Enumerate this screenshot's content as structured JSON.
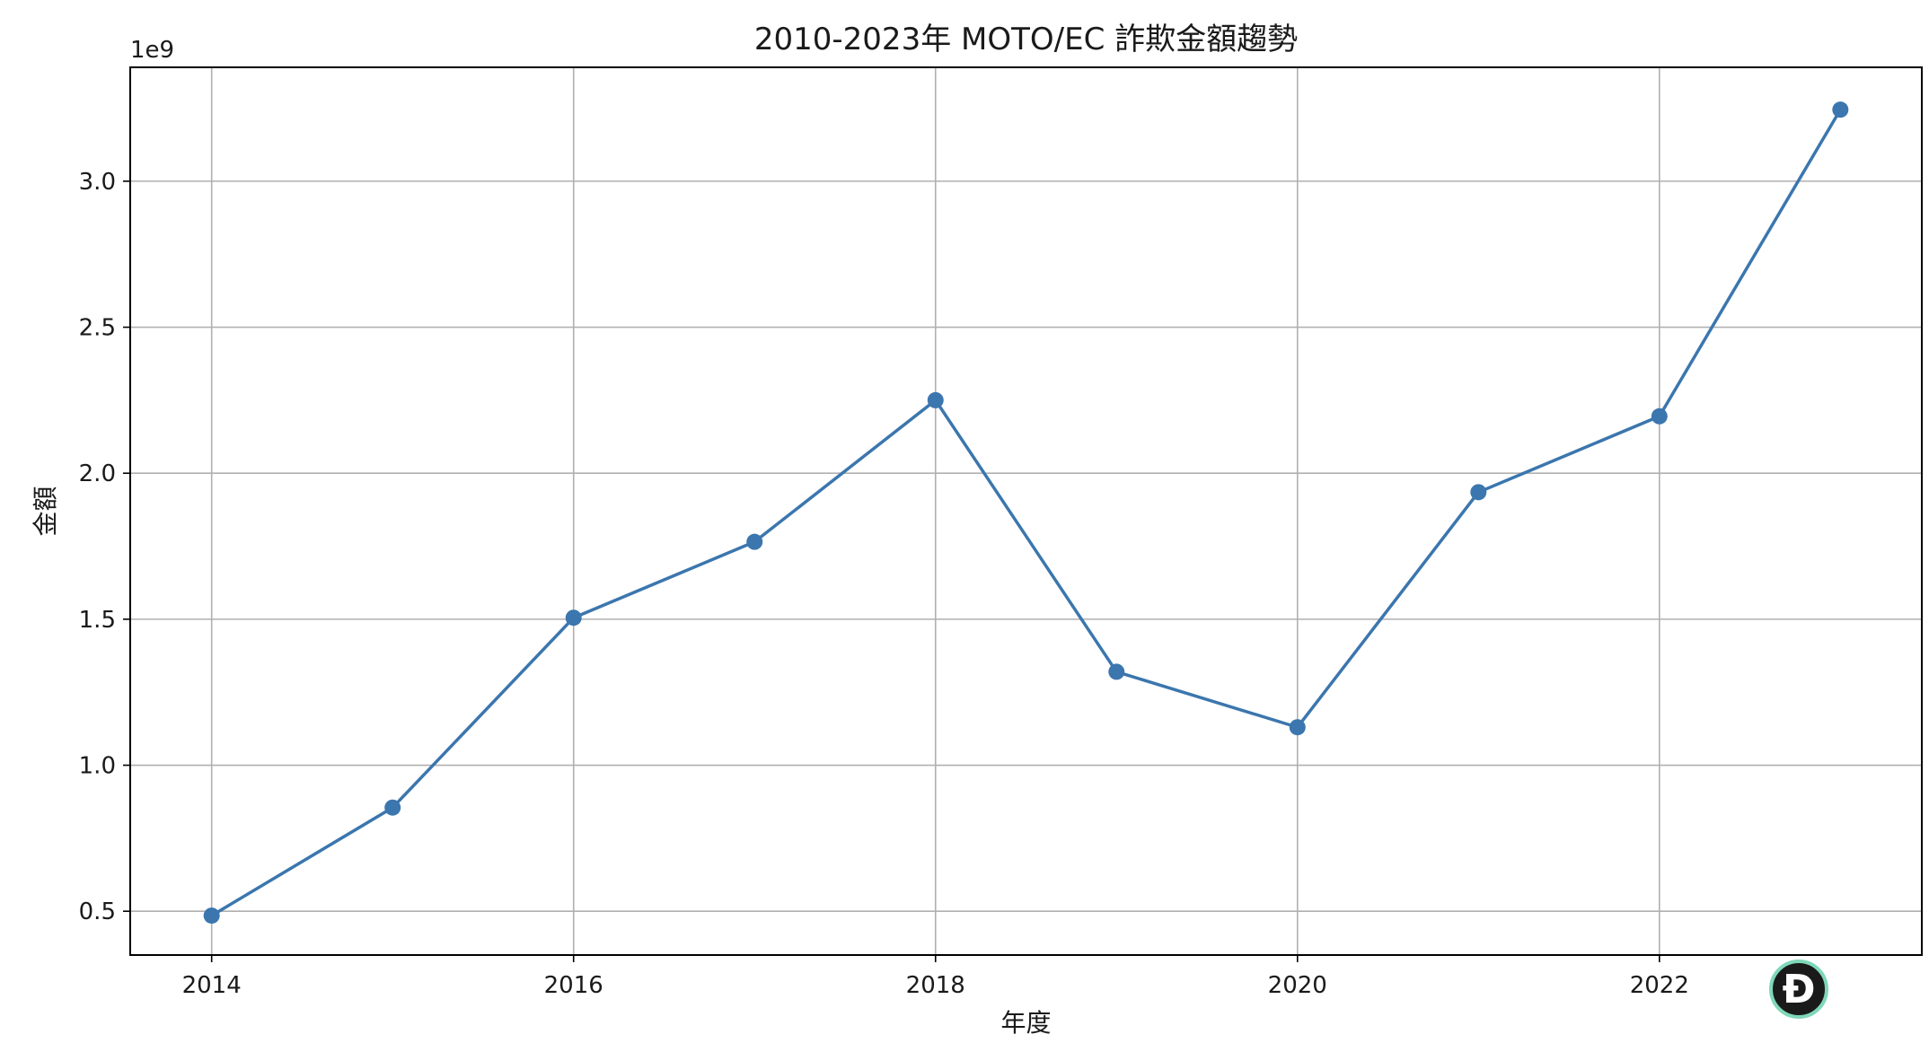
{
  "chart_data": {
    "type": "line",
    "title": "2010-2023年 MOTO/EC 詐欺金額趨勢",
    "xlabel": "年度",
    "ylabel": "金額",
    "y_offset_label": "1e9",
    "x": [
      2014,
      2015,
      2016,
      2017,
      2018,
      2019,
      2020,
      2021,
      2022,
      2023
    ],
    "series": [
      {
        "values": [
          485000000,
          855000000,
          1505000000,
          1765000000,
          2250000000,
          1320000000,
          1130000000,
          1935000000,
          2195000000,
          3245000000
        ],
        "color": "#3b76ae",
        "marker": "circle"
      }
    ],
    "xlim": [
      2013.55,
      2023.45
    ],
    "ylim": [
      0.35,
      3.39
    ],
    "x_ticks": [
      2014,
      2016,
      2018,
      2020,
      2022
    ],
    "x_tick_labels": [
      "2014",
      "2016",
      "2018",
      "2020",
      "2022"
    ],
    "y_ticks": [
      0.5,
      1.0,
      1.5,
      2.0,
      2.5,
      3.0
    ],
    "y_tick_labels": [
      "0.5",
      "1.0",
      "1.5",
      "2.0",
      "2.5",
      "3.0"
    ],
    "grid": true,
    "legend": "none"
  },
  "badge": {
    "icon": "app-logo-icon",
    "glyph": "Ð"
  }
}
